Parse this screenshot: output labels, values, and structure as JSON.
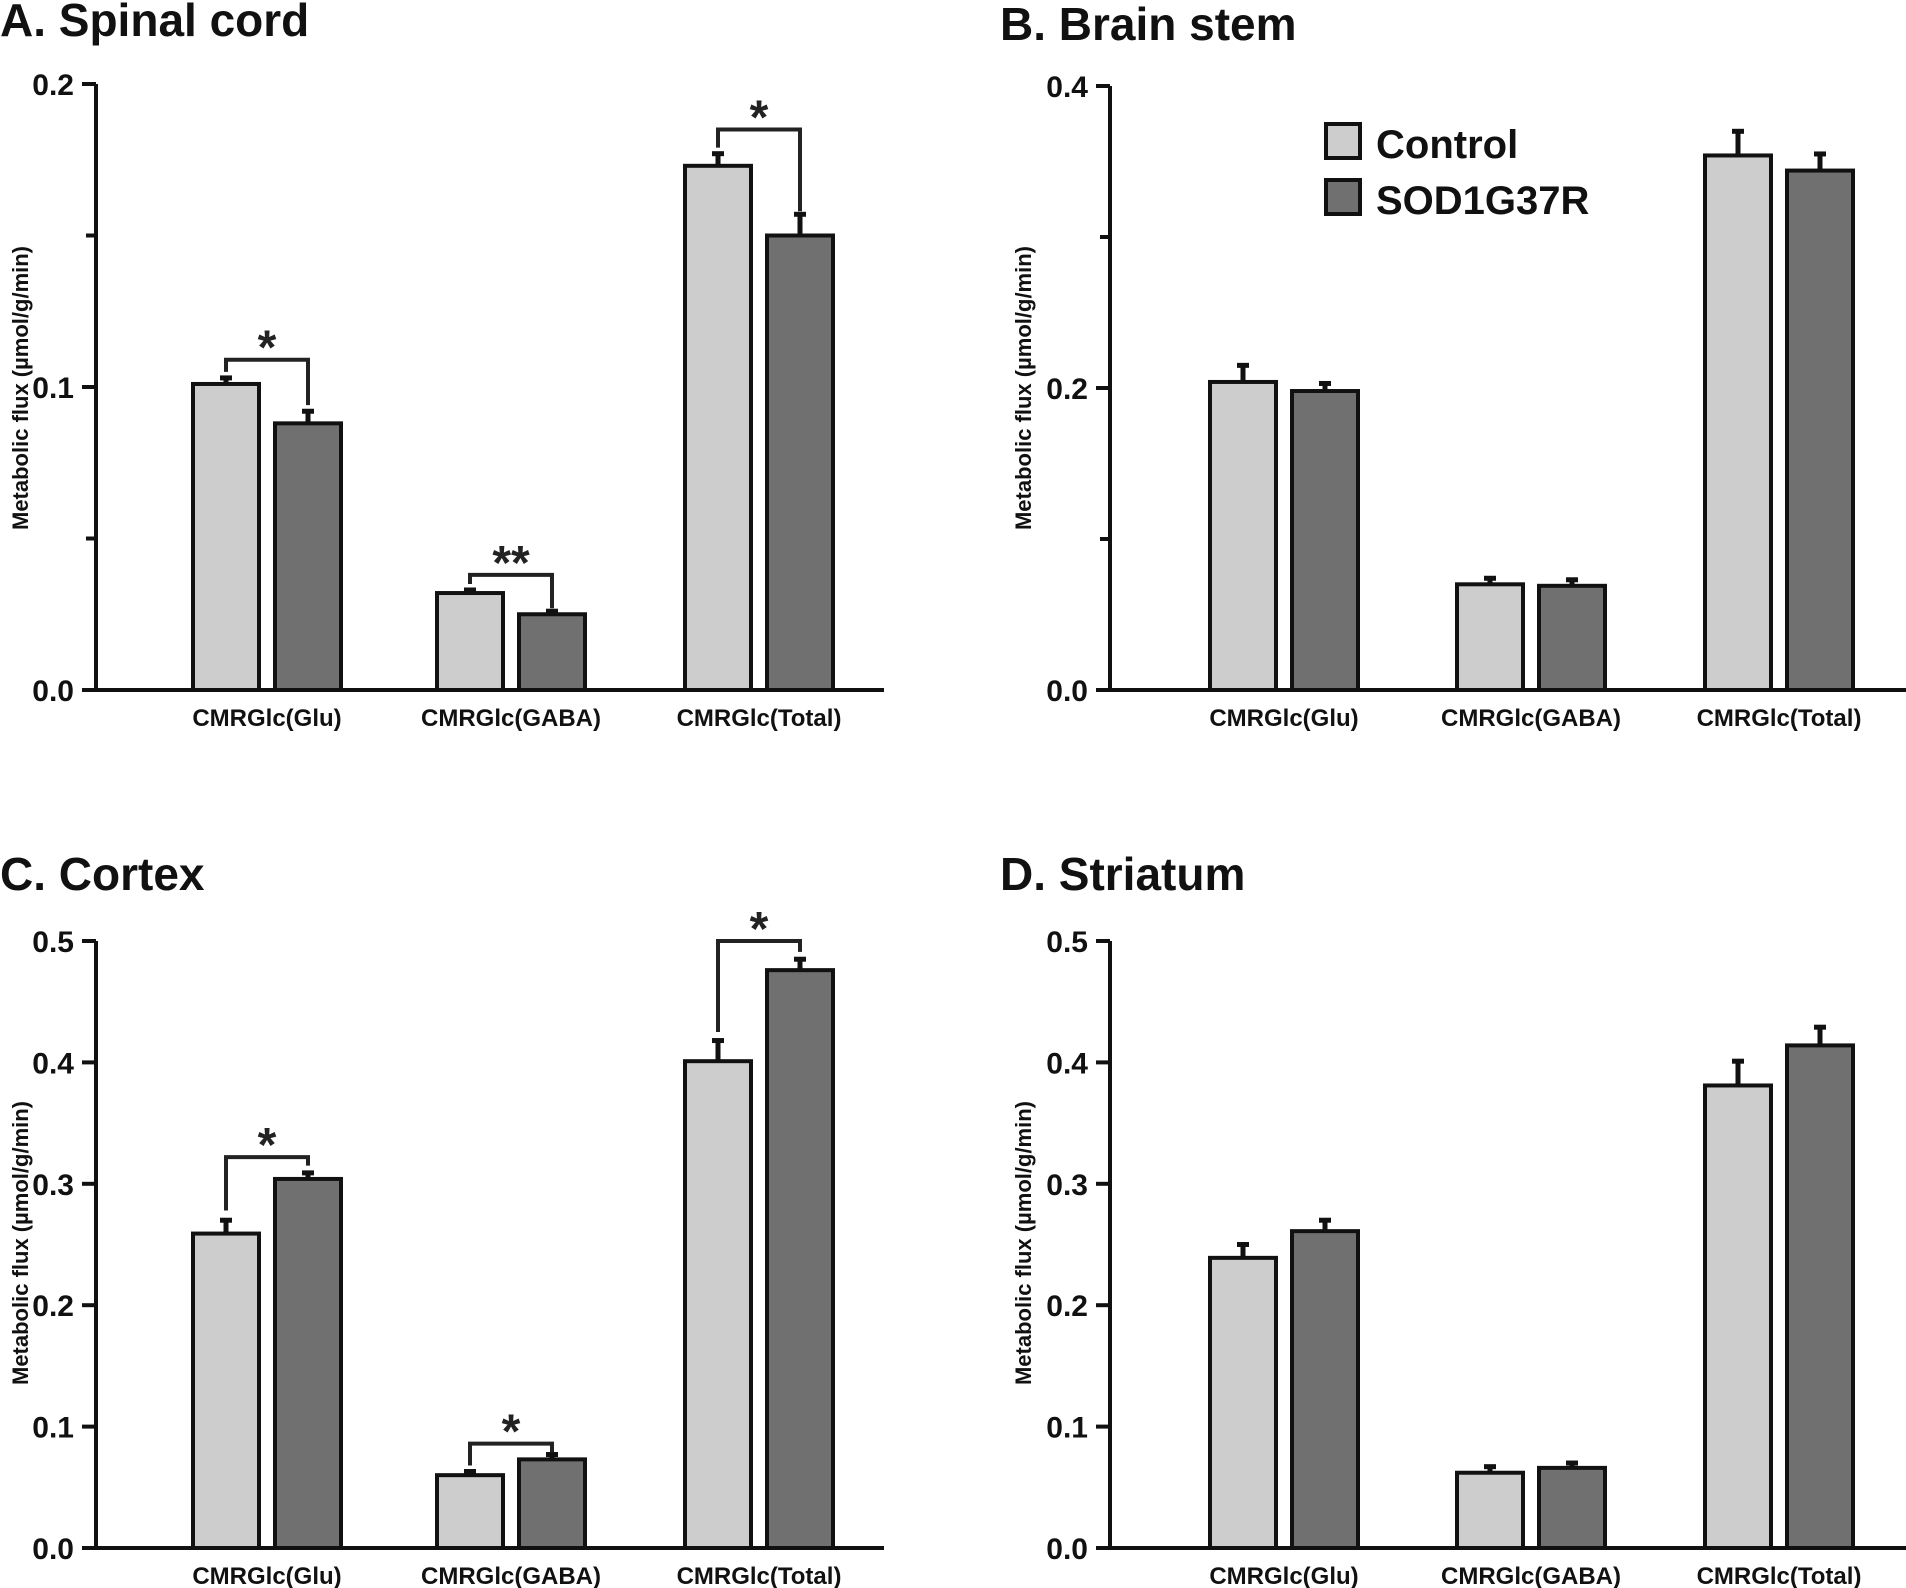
{
  "colors": {
    "control": "#cccdcc",
    "mutant": "#707070",
    "outline": "#111111"
  },
  "legend": {
    "control": "Control",
    "mutant": "SOD1G37R"
  },
  "chart_data": [
    {
      "id": "A",
      "type": "bar",
      "title": "A. Spinal cord",
      "ylabel": "Metabolic flux (µmol/g/min)",
      "ylim": [
        0,
        0.2
      ],
      "yticks": [
        0.0,
        0.1,
        0.2
      ],
      "yticks_minor": [
        0.05,
        0.15
      ],
      "categories": [
        "CMRGlc(Glu)",
        "CMRGlc(GABA)",
        "CMRGlc(Total)"
      ],
      "series": [
        {
          "name": "Control",
          "values": [
            0.101,
            0.032,
            0.173
          ],
          "errors": [
            0.002,
            0.001,
            0.004
          ]
        },
        {
          "name": "SOD1G37R",
          "values": [
            0.088,
            0.025,
            0.15
          ],
          "errors": [
            0.004,
            0.001,
            0.007
          ]
        }
      ],
      "significance": [
        {
          "category": 0,
          "label": "*",
          "line": 0.109,
          "left_end": 0.105,
          "right_end": 0.094
        },
        {
          "category": 1,
          "label": "**",
          "line": 0.038,
          "left_end": 0.035,
          "right_end": 0.027
        },
        {
          "category": 2,
          "label": "*",
          "line": 0.185,
          "left_end": 0.179,
          "right_end": 0.158
        }
      ]
    },
    {
      "id": "B",
      "type": "bar",
      "title": "B. Brain stem",
      "ylabel": "Metabolic flux (µmol/g/min)",
      "ylim": [
        0,
        0.4
      ],
      "yticks": [
        0.0,
        0.2,
        0.4
      ],
      "yticks_minor": [
        0.1,
        0.3
      ],
      "categories": [
        "CMRGlc(Glu)",
        "CMRGlc(GABA)",
        "CMRGlc(Total)"
      ],
      "series": [
        {
          "name": "Control",
          "values": [
            0.204,
            0.07,
            0.354
          ],
          "errors": [
            0.011,
            0.004,
            0.016
          ]
        },
        {
          "name": "SOD1G37R",
          "values": [
            0.198,
            0.069,
            0.344
          ],
          "errors": [
            0.005,
            0.004,
            0.011
          ]
        }
      ],
      "significance": []
    },
    {
      "id": "C",
      "type": "bar",
      "title": "C. Cortex",
      "ylabel": "Metabolic flux (µmol/g/min)",
      "ylim": [
        0,
        0.5
      ],
      "yticks": [
        0.0,
        0.1,
        0.2,
        0.3,
        0.4,
        0.5
      ],
      "yticks_minor": [],
      "categories": [
        "CMRGlc(Glu)",
        "CMRGlc(GABA)",
        "CMRGlc(Total)"
      ],
      "series": [
        {
          "name": "Control",
          "values": [
            0.259,
            0.06,
            0.401
          ],
          "errors": [
            0.011,
            0.003,
            0.017
          ]
        },
        {
          "name": "SOD1G37R",
          "values": [
            0.304,
            0.073,
            0.476
          ],
          "errors": [
            0.005,
            0.004,
            0.009
          ]
        }
      ],
      "significance": [
        {
          "category": 0,
          "label": "*",
          "line": 0.322,
          "left_end": 0.278,
          "right_end": 0.315
        },
        {
          "category": 1,
          "label": "*",
          "line": 0.086,
          "left_end": 0.068,
          "right_end": 0.079
        },
        {
          "category": 2,
          "label": "*",
          "line": 0.5,
          "left_end": 0.425,
          "right_end": 0.491
        }
      ]
    },
    {
      "id": "D",
      "type": "bar",
      "title": "D. Striatum",
      "ylabel": "Metabolic flux (µmol/g/min)",
      "ylim": [
        0,
        0.5
      ],
      "yticks": [
        0.0,
        0.1,
        0.2,
        0.3,
        0.4,
        0.5
      ],
      "yticks_minor": [],
      "categories": [
        "CMRGlc(Glu)",
        "CMRGlc(GABA)",
        "CMRGlc(Total)"
      ],
      "series": [
        {
          "name": "Control",
          "values": [
            0.239,
            0.062,
            0.381
          ],
          "errors": [
            0.011,
            0.005,
            0.02
          ]
        },
        {
          "name": "SOD1G37R",
          "values": [
            0.261,
            0.066,
            0.414
          ],
          "errors": [
            0.009,
            0.004,
            0.015
          ]
        }
      ],
      "significance": []
    }
  ]
}
